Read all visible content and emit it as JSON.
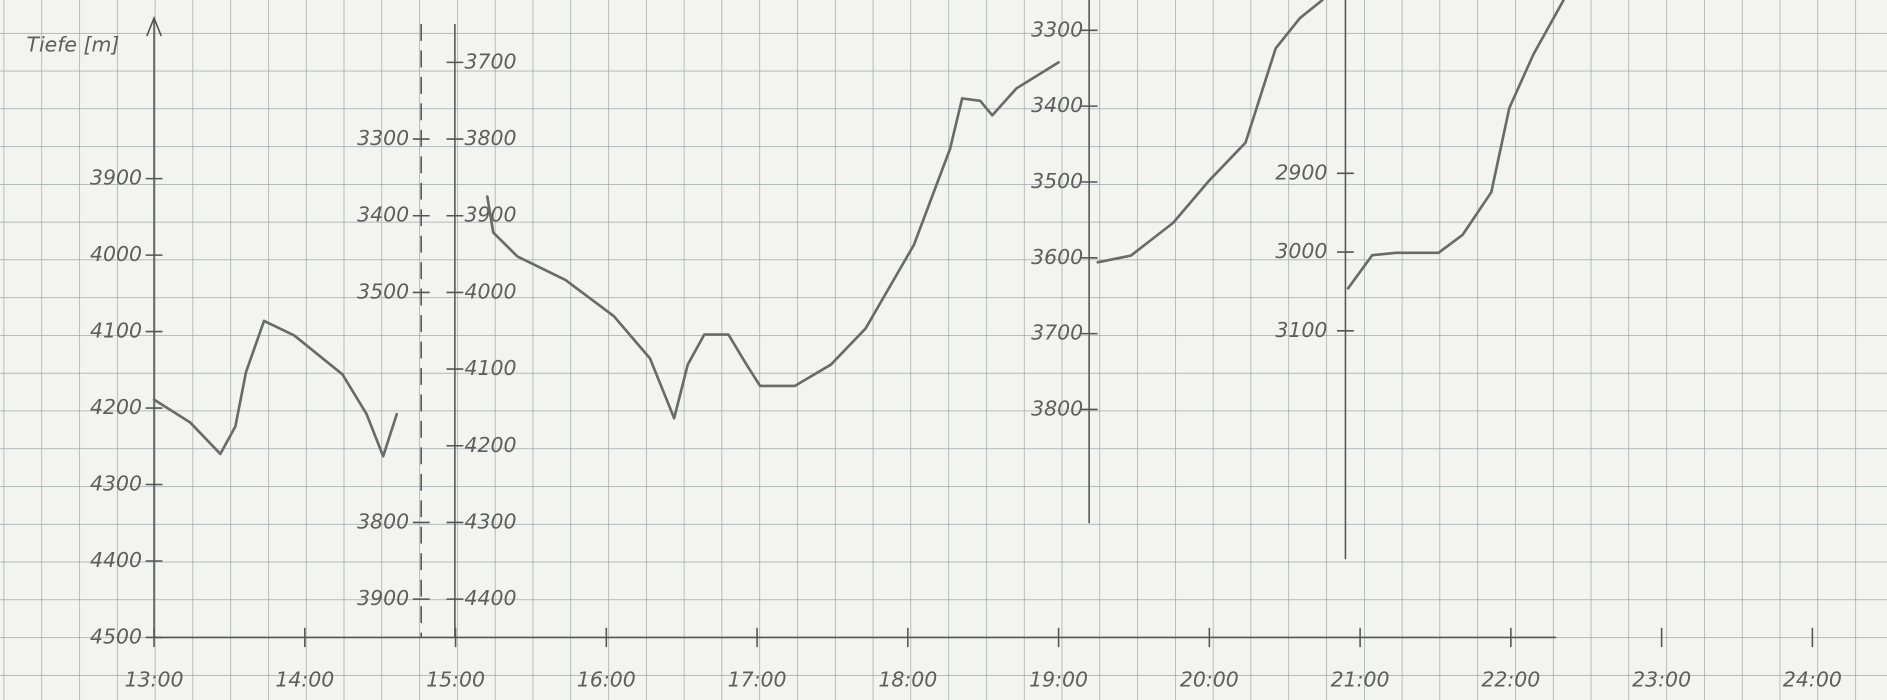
{
  "chart_data": [
    {
      "type": "line",
      "y_label": "Tiefe [m]",
      "xlim": [
        13,
        24
      ],
      "xticks": [
        {
          "value": 13,
          "label": "13:00"
        },
        {
          "value": 14,
          "label": "14:00"
        },
        {
          "value": 15,
          "label": "15:00"
        },
        {
          "value": 16,
          "label": "16:00"
        },
        {
          "value": 17,
          "label": "17:00"
        },
        {
          "value": 18,
          "label": "18:00"
        },
        {
          "value": 19,
          "label": "19:00"
        },
        {
          "value": 20,
          "label": "20:00"
        },
        {
          "value": 21,
          "label": "21:00"
        },
        {
          "value": 22,
          "label": "22:00"
        },
        {
          "value": 23,
          "label": "23:00"
        },
        {
          "value": 24,
          "label": "24:00"
        }
      ],
      "ylim": [
        3690,
        4500
      ],
      "yticks": [
        3900,
        4000,
        4100,
        4200,
        4300,
        4400,
        4500
      ],
      "x": [
        13.0,
        13.24,
        13.44,
        13.54,
        13.61,
        13.73,
        13.93,
        14.25,
        14.41,
        14.52,
        14.61
      ],
      "series": [
        {
          "color": "#6a6a6a",
          "values": [
            4189,
            4219,
            4260,
            4224,
            4153,
            4086,
            4105,
            4156,
            4208,
            4263,
            4208
          ]
        }
      ]
    },
    {
      "type": "line",
      "ylim": [
        3150,
        3950
      ],
      "yticks": [
        3300,
        3400,
        3500,
        3800,
        3900
      ],
      "y2lim": [
        3650,
        4450
      ],
      "y2ticks": [
        3700,
        3800,
        3900,
        4000,
        4100,
        4200,
        4300,
        4400
      ],
      "x": [
        15.21,
        15.25,
        15.41,
        15.73,
        16.05,
        16.29,
        16.45,
        16.54,
        16.65,
        16.81,
        16.93,
        17.02,
        17.25,
        17.49,
        17.72,
        18.04,
        18.28,
        18.36,
        18.48,
        18.56,
        18.72,
        19.0
      ],
      "series": [
        {
          "color": "#6a6a6a",
          "axis": "y2",
          "values": [
            3875,
            3922,
            3953,
            3984,
            4031,
            4086,
            4164,
            4094,
            4055,
            4055,
            4094,
            4122,
            4122,
            4094,
            4047,
            3938,
            3813,
            3747,
            3750,
            3769,
            3734,
            3700
          ]
        }
      ]
    },
    {
      "type": "line",
      "ylim": [
        3260,
        3950
      ],
      "yticks": [
        3300,
        3400,
        3500,
        3600,
        3700,
        3800
      ],
      "x": [
        19.26,
        19.48,
        19.76,
        20.0,
        20.24,
        20.44,
        20.6,
        20.75
      ],
      "series": [
        {
          "color": "#5a5a5a",
          "values": [
            3606,
            3597,
            3554,
            3498,
            3448,
            3324,
            3284,
            3260
          ]
        }
      ]
    },
    {
      "type": "line",
      "ylim": [
        2680,
        3390
      ],
      "yticks": [
        2900,
        3000,
        3100
      ],
      "x": [
        20.92,
        21.08,
        21.24,
        21.52,
        21.68,
        21.87,
        21.99,
        22.15,
        22.35
      ],
      "series": [
        {
          "color": "#5a5a5a",
          "values": [
            3046,
            3004,
            3001,
            3001,
            2978,
            2924,
            2817,
            2749,
            2680
          ]
        }
      ]
    }
  ]
}
